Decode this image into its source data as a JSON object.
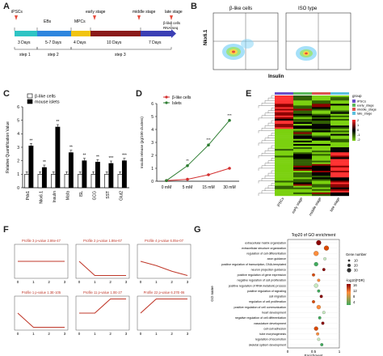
{
  "panels": {
    "A": "A",
    "B": "B",
    "C": "C",
    "D": "D",
    "E": "E",
    "F": "F",
    "G": "G"
  },
  "timeline": {
    "stages_top": [
      "iPSCs",
      "EBs",
      "MPCs",
      "early stage",
      "middle stage",
      "late stage"
    ],
    "durations": [
      "3 Days",
      "5-7 Days",
      "4 Days",
      "10 Days",
      "7 Days"
    ],
    "steps": [
      "step 1",
      "step 2",
      "step 3"
    ],
    "seq_label": [
      "β-like cells",
      "RNA-seq"
    ],
    "colors": {
      "ipsc": "#2ec4c4",
      "eb": "#2e86de",
      "mpc": "#f1c40f",
      "step3": "#8b1a1a",
      "late": "#3b3fb5"
    }
  },
  "flow": {
    "titles": [
      "β-like cells",
      "ISO type"
    ],
    "ylabel": "Nkx6.1",
    "xlabel": "Insulin"
  },
  "chart_data": [
    {
      "type": "bar",
      "ylabel": "Relative Quantification Value",
      "categories": [
        "Pdx1",
        "Nkx6.1",
        "Insulin",
        "Mafa",
        "ISL",
        "GCG",
        "SST",
        "Glut2"
      ],
      "series": [
        {
          "name": "β-like cells",
          "values": [
            1,
            1,
            1,
            1,
            1,
            1,
            1,
            1
          ],
          "color": "#ffffff"
        },
        {
          "name": "mouse islets",
          "values": [
            3.1,
            1.5,
            4.5,
            2.6,
            2.0,
            1.9,
            1.8,
            2.0
          ],
          "color": "#000000"
        }
      ],
      "significance": [
        "**",
        "**",
        "**",
        "**",
        "**",
        "**",
        "***",
        "***"
      ],
      "ylim": [
        0,
        6
      ],
      "yticks": [
        0,
        1,
        2,
        3,
        4,
        5,
        6
      ]
    },
    {
      "type": "line",
      "ylabel": "Insulin release (pg/100 clusters)",
      "categories": [
        "0 mM",
        "5 mM",
        "15 mM",
        "30 mM"
      ],
      "series": [
        {
          "name": "β-like cells",
          "values": [
            0.05,
            0.15,
            0.5,
            1.0
          ],
          "color": "#d32f2f"
        },
        {
          "name": "Islets",
          "values": [
            0.05,
            1.2,
            2.8,
            4.7
          ],
          "color": "#2e7d32"
        }
      ],
      "significance": [
        "",
        "**",
        "***",
        "***"
      ],
      "ylim": [
        0,
        6
      ],
      "yticks": [
        0,
        1,
        2,
        3,
        4,
        5,
        6
      ]
    },
    {
      "type": "heatmap",
      "columns": [
        "iPSCs",
        "early stage",
        "middle stage",
        "late stage"
      ],
      "legend_title": "group",
      "legend": [
        {
          "name": "iPSCs",
          "color": "#6a4fc9"
        },
        {
          "name": "early_stage",
          "color": "#5cb85c"
        },
        {
          "name": "middle_stage",
          "color": "#d9534f"
        },
        {
          "name": "late_stage",
          "color": "#5bc0de"
        }
      ],
      "scale": [
        "2",
        "1",
        "0",
        "-1",
        "-2"
      ]
    },
    {
      "type": "line",
      "profiles": [
        {
          "label": "Profile 3 p-value 2.86e-47",
          "values": [
            0,
            0,
            0,
            0
          ]
        },
        {
          "label": "Profile 2 p-value 1.86e-67",
          "values": [
            0,
            -1,
            -1,
            -1
          ]
        },
        {
          "label": "Profile 4 p-value 6.05e-07",
          "values": [
            0,
            -0.3,
            -0.7,
            -1
          ]
        },
        {
          "label": "Profile 1 p-value 1.3E-105",
          "values": [
            0,
            -1,
            -1,
            -1
          ]
        },
        {
          "label": "Profile 11 p-value 1.0E-27",
          "values": [
            0,
            0,
            1,
            1
          ]
        },
        {
          "label": "Profile 22 p-value 6.37E-06",
          "values": [
            0,
            1,
            1,
            1
          ]
        }
      ],
      "xticks": [
        "0",
        "1",
        "2",
        "3"
      ]
    },
    {
      "type": "scatter",
      "title": "Top20 of GO enrichment",
      "xlabel": "Enrichment",
      "ylabel": "GO name",
      "size_legend_title": "Gene number",
      "size_legend": [
        "10",
        "20",
        "30"
      ],
      "color_legend_title": "-log10(FDR)",
      "color_scale": [
        "16",
        "12",
        "8",
        "4"
      ],
      "terms": [
        "extracellular matrix organization",
        "extracellular structure organization",
        "regulation of cell differentiation",
        "axon guidance",
        "positive regulation of transcription, DNA-templated",
        "neuron projection guidance",
        "positive regulation of gene expression",
        "negative regulation of cell proliferation",
        "positive regulation of RNA metabolic process",
        "positive regulation of signaling",
        "cell migration",
        "regulation of cell proliferation",
        "positive regulation of cell communication",
        "heart development",
        "negative regulation of cell differentiation",
        "vasculature development",
        "cell-cell adhesion",
        "tube morphogenesis",
        "regulation of locomotion",
        "skeletal system development"
      ],
      "values": [
        0.6,
        0.75,
        0.55,
        0.72,
        0.55,
        0.7,
        0.5,
        0.6,
        0.55,
        0.6,
        0.65,
        0.5,
        0.6,
        0.7,
        0.62,
        0.68,
        0.55,
        0.58,
        0.6,
        0.66
      ],
      "xticks": [
        "0",
        "0.5",
        "1"
      ]
    }
  ]
}
